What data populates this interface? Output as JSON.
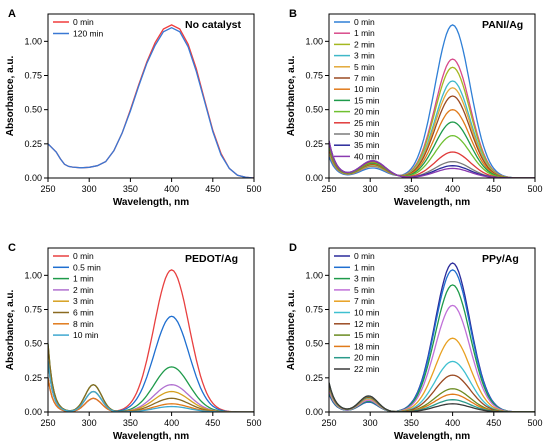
{
  "chart_data": [
    {
      "type": "line",
      "panel_letter": "A",
      "title": "No catalyst",
      "xlabel": "Wavelength, nm",
      "ylabel": "Absorbance, a.u.",
      "xlim": [
        250,
        500
      ],
      "ylim": [
        0,
        1.2
      ],
      "x_ticks": [
        250,
        300,
        350,
        400,
        450,
        500
      ],
      "y_ticks": [
        "0.00",
        "0.25",
        "0.50",
        "0.75",
        "1.00"
      ],
      "legend_position": "top-left",
      "series": [
        {
          "name": "0 min",
          "color": "#f03c3c",
          "points": [
            [
              250,
              0.25
            ],
            [
              255,
              0.22
            ],
            [
              260,
              0.19
            ],
            [
              265,
              0.14
            ],
            [
              270,
              0.1
            ],
            [
              275,
              0.085
            ],
            [
              280,
              0.08
            ],
            [
              290,
              0.075
            ],
            [
              300,
              0.078
            ],
            [
              310,
              0.09
            ],
            [
              320,
              0.12
            ],
            [
              330,
              0.2
            ],
            [
              340,
              0.33
            ],
            [
              350,
              0.5
            ],
            [
              360,
              0.68
            ],
            [
              370,
              0.85
            ],
            [
              380,
              0.99
            ],
            [
              390,
              1.09
            ],
            [
              400,
              1.12
            ],
            [
              410,
              1.09
            ],
            [
              420,
              0.98
            ],
            [
              430,
              0.8
            ],
            [
              440,
              0.57
            ],
            [
              450,
              0.35
            ],
            [
              460,
              0.18
            ],
            [
              470,
              0.07
            ],
            [
              480,
              0.02
            ],
            [
              490,
              0.005
            ],
            [
              500,
              0.0
            ]
          ]
        },
        {
          "name": "120 min",
          "color": "#3a78d4",
          "points": [
            [
              250,
              0.25
            ],
            [
              255,
              0.22
            ],
            [
              260,
              0.19
            ],
            [
              265,
              0.14
            ],
            [
              270,
              0.1
            ],
            [
              275,
              0.085
            ],
            [
              280,
              0.08
            ],
            [
              290,
              0.075
            ],
            [
              300,
              0.078
            ],
            [
              310,
              0.09
            ],
            [
              320,
              0.12
            ],
            [
              330,
              0.2
            ],
            [
              340,
              0.33
            ],
            [
              350,
              0.49
            ],
            [
              360,
              0.67
            ],
            [
              370,
              0.84
            ],
            [
              380,
              0.97
            ],
            [
              390,
              1.07
            ],
            [
              400,
              1.1
            ],
            [
              410,
              1.07
            ],
            [
              420,
              0.96
            ],
            [
              430,
              0.78
            ],
            [
              440,
              0.56
            ],
            [
              450,
              0.34
            ],
            [
              460,
              0.17
            ],
            [
              470,
              0.07
            ],
            [
              480,
              0.02
            ],
            [
              490,
              0.005
            ],
            [
              500,
              0.0
            ]
          ]
        }
      ]
    },
    {
      "type": "line",
      "panel_letter": "B",
      "title": "PANI/Ag",
      "xlabel": "Wavelength, nm",
      "ylabel": "Absorbance, a.u.",
      "xlim": [
        250,
        500
      ],
      "ylim": [
        0,
        1.2
      ],
      "x_ticks": [
        250,
        300,
        350,
        400,
        450,
        500
      ],
      "y_ticks": [
        "0.00",
        "0.25",
        "0.50",
        "0.75",
        "1.00"
      ],
      "legend_position": "top-left",
      "profile": "peak",
      "series": [
        {
          "name": "0 min",
          "color": "#2f7fd6",
          "peak": 1.12
        },
        {
          "name": "1 min",
          "color": "#d84a8a",
          "peak": 0.87
        },
        {
          "name": "2 min",
          "color": "#a4b820",
          "peak": 0.81
        },
        {
          "name": "3 min",
          "color": "#3fb8c8",
          "peak": 0.71
        },
        {
          "name": "5 min",
          "color": "#e2a838",
          "peak": 0.66
        },
        {
          "name": "7 min",
          "color": "#9a4a22",
          "peak": 0.6
        },
        {
          "name": "10 min",
          "color": "#e07a1a",
          "peak": 0.5
        },
        {
          "name": "15 min",
          "color": "#1e9a4a",
          "peak": 0.41
        },
        {
          "name": "20 min",
          "color": "#6fc030",
          "peak": 0.31
        },
        {
          "name": "25 min",
          "color": "#e03a3a",
          "peak": 0.19
        },
        {
          "name": "30 min",
          "color": "#7a7a7a",
          "peak": 0.12
        },
        {
          "name": "35 min",
          "color": "#2a2a9a",
          "peak": 0.09
        },
        {
          "name": "40 min",
          "color": "#8a3ab0",
          "peak": 0.07
        }
      ]
    },
    {
      "type": "line",
      "panel_letter": "C",
      "title": "PEDOT/Ag",
      "xlabel": "Wavelength, nm",
      "ylabel": "Absorbance, a.u.",
      "xlim": [
        250,
        500
      ],
      "ylim": [
        0,
        1.2
      ],
      "x_ticks": [
        250,
        300,
        350,
        400,
        450,
        500
      ],
      "y_ticks": [
        "0.00",
        "0.25",
        "0.50",
        "0.75",
        "1.00"
      ],
      "legend_position": "top-left",
      "profile": "peak",
      "series": [
        {
          "name": "0 min",
          "color": "#e84040",
          "peak": 1.04
        },
        {
          "name": "0.5 min",
          "color": "#1f6fd0",
          "peak": 0.7
        },
        {
          "name": "1 min",
          "color": "#1e9a4a",
          "peak": 0.33
        },
        {
          "name": "2 min",
          "color": "#b070d0",
          "peak": 0.2
        },
        {
          "name": "3 min",
          "color": "#d6a020",
          "peak": 0.15
        },
        {
          "name": "6 min",
          "color": "#8a6a20",
          "peak": 0.1
        },
        {
          "name": "8 min",
          "color": "#e07a1a",
          "peak": 0.06
        },
        {
          "name": "10 min",
          "color": "#3fa8d0",
          "peak": 0.04
        }
      ]
    },
    {
      "type": "line",
      "panel_letter": "D",
      "title": "PPy/Ag",
      "xlabel": "Wavelength, nm",
      "ylabel": "Absorbance, a.u.",
      "xlim": [
        250,
        500
      ],
      "ylim": [
        0,
        1.2
      ],
      "x_ticks": [
        250,
        300,
        350,
        400,
        450,
        500
      ],
      "y_ticks": [
        "0.00",
        "0.25",
        "0.50",
        "0.75",
        "1.00"
      ],
      "legend_position": "top-left",
      "profile": "peak",
      "series": [
        {
          "name": "0 min",
          "color": "#2a2a9a",
          "peak": 1.09
        },
        {
          "name": "1 min",
          "color": "#1f6fd0",
          "peak": 1.04
        },
        {
          "name": "3 min",
          "color": "#1e9a4a",
          "peak": 0.93
        },
        {
          "name": "5 min",
          "color": "#c070d8",
          "peak": 0.78
        },
        {
          "name": "7 min",
          "color": "#e8a020",
          "peak": 0.54
        },
        {
          "name": "10 min",
          "color": "#3fc0d0",
          "peak": 0.37
        },
        {
          "name": "12 min",
          "color": "#9a4a22",
          "peak": 0.27
        },
        {
          "name": "15 min",
          "color": "#6a8a20",
          "peak": 0.17
        },
        {
          "name": "18 min",
          "color": "#e07a1a",
          "peak": 0.13
        },
        {
          "name": "20 min",
          "color": "#2a9a8a",
          "peak": 0.09
        },
        {
          "name": "22 min",
          "color": "#3a3a3a",
          "peak": 0.06
        }
      ]
    }
  ]
}
